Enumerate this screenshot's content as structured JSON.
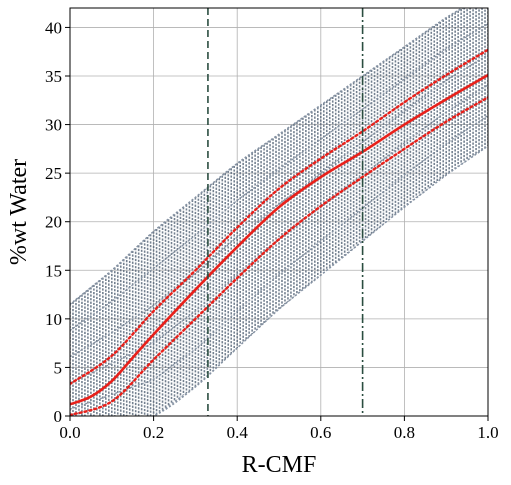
{
  "chart_data": {
    "type": "line",
    "title": "",
    "xlabel": "R-CMF",
    "ylabel": "%wt Water",
    "xlim": [
      0.0,
      1.0
    ],
    "ylim": [
      0,
      42
    ],
    "x_ticks": [
      0.0,
      0.2,
      0.4,
      0.6,
      0.8,
      1.0
    ],
    "x_tick_labels": [
      "0.0",
      "0.2",
      "0.4",
      "0.6",
      "0.8",
      "1.0"
    ],
    "y_ticks": [
      0,
      5,
      10,
      15,
      20,
      25,
      30,
      35,
      40
    ],
    "y_tick_labels": [
      "0",
      "5",
      "10",
      "15",
      "20",
      "25",
      "30",
      "35",
      "40"
    ],
    "grid": true,
    "legend": "none",
    "series": [
      {
        "role": "median",
        "style": "solid",
        "color": "#e8201a",
        "x": [
          0.0,
          0.05,
          0.1,
          0.15,
          0.2,
          0.3,
          0.4,
          0.5,
          0.6,
          0.7,
          0.8,
          0.9,
          1.0
        ],
        "y": [
          1.2,
          2.0,
          3.6,
          6.0,
          8.4,
          13.0,
          17.4,
          21.5,
          24.6,
          27.2,
          30.0,
          32.6,
          35.1
        ]
      },
      {
        "role": "upper-band",
        "style": "dotted",
        "color": "#e8201a",
        "x": [
          0.0,
          0.1,
          0.2,
          0.3,
          0.4,
          0.5,
          0.6,
          0.7,
          0.8,
          0.9,
          1.0
        ],
        "y": [
          3.3,
          6.2,
          10.8,
          15.0,
          19.4,
          23.4,
          26.5,
          29.3,
          32.3,
          35.1,
          37.7
        ]
      },
      {
        "role": "lower-band",
        "style": "dotted",
        "color": "#e8201a",
        "x": [
          0.0,
          0.1,
          0.2,
          0.3,
          0.4,
          0.5,
          0.6,
          0.7,
          0.8,
          0.9,
          1.0
        ],
        "y": [
          0.1,
          1.5,
          5.8,
          10.0,
          14.2,
          18.2,
          21.6,
          24.6,
          27.5,
          30.3,
          32.8
        ]
      },
      {
        "role": "samples-upper-envelope",
        "style": "dotted",
        "color": "#8592a3",
        "x": [
          0.0,
          0.1,
          0.2,
          0.3,
          0.4,
          0.5,
          0.6,
          0.7,
          0.8,
          0.9,
          1.0
        ],
        "y": [
          11.5,
          15.0,
          19.0,
          22.5,
          26.0,
          29.0,
          32.0,
          35.0,
          38.0,
          41.0,
          43.5
        ]
      },
      {
        "role": "samples-lower-envelope",
        "style": "dotted",
        "color": "#8592a3",
        "x": [
          0.0,
          0.1,
          0.2,
          0.3,
          0.4,
          0.5,
          0.6,
          0.7,
          0.8,
          0.9,
          1.0
        ],
        "y": [
          -2.0,
          -1.0,
          0.0,
          3.0,
          7.0,
          11.0,
          14.5,
          18.0,
          21.5,
          24.8,
          27.8
        ]
      }
    ],
    "vertical_lines": [
      {
        "x": 0.33,
        "style": "dashed",
        "color": "#2a4d40"
      },
      {
        "x": 0.7,
        "style": "dashdot",
        "color": "#2a4d40"
      }
    ],
    "sample_fill_color": "#5b6a7c"
  }
}
